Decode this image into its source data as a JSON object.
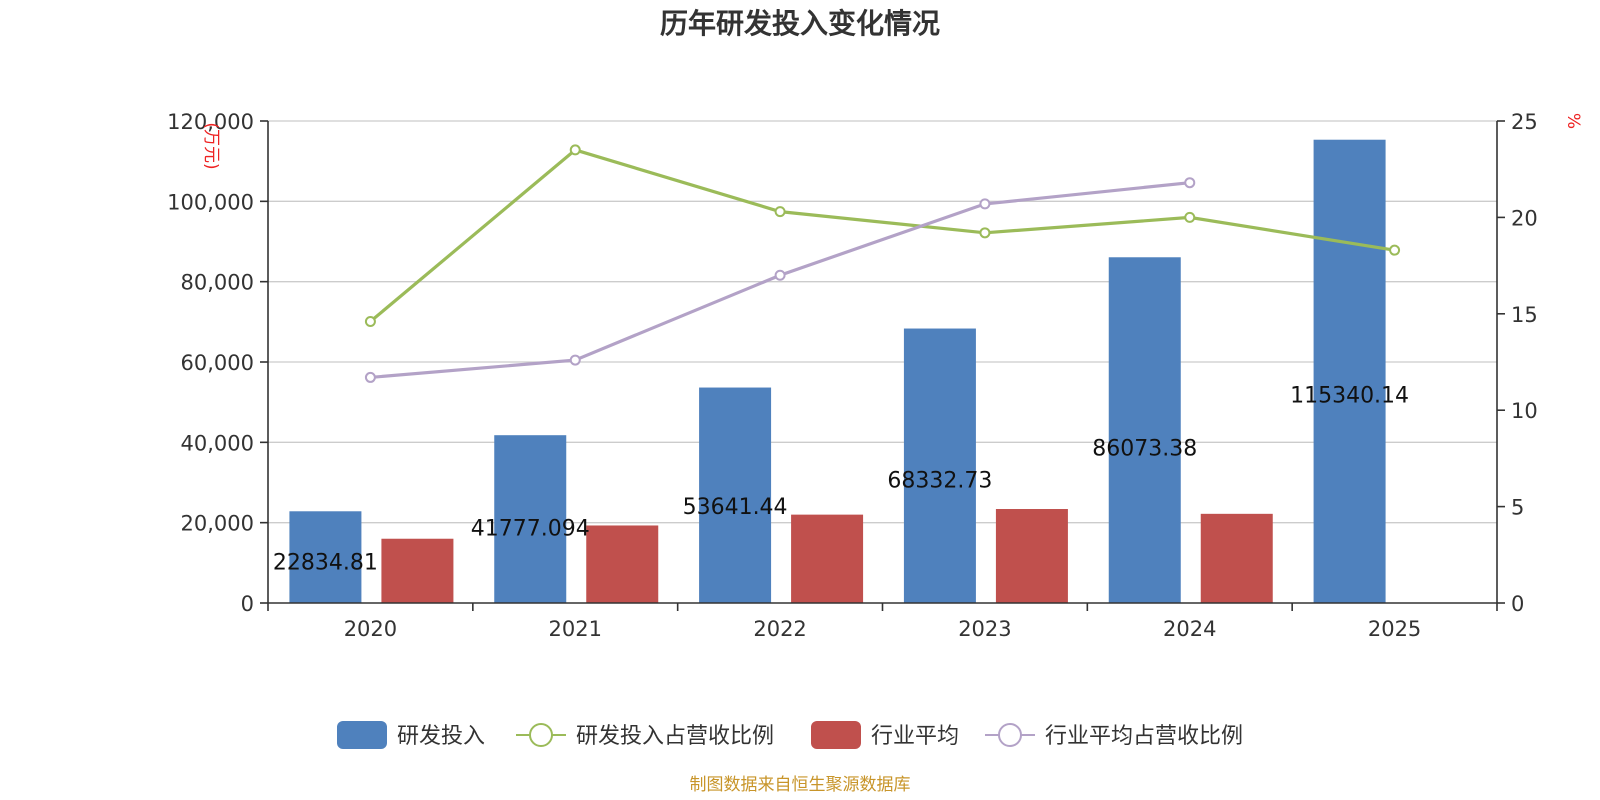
{
  "chart_data": {
    "type": "bar",
    "title": "历年研发投入变化情况",
    "categories": [
      "2020",
      "2021",
      "2022",
      "2023",
      "2024",
      "2025"
    ],
    "y_left": {
      "label": "(万元)",
      "ylim": [
        0,
        120000
      ],
      "ticks": [
        "0",
        "20,000",
        "40,000",
        "60,000",
        "80,000",
        "100,000",
        "120,000"
      ]
    },
    "y_right": {
      "label": "%",
      "ylim": [
        0,
        25
      ],
      "ticks": [
        "0",
        "5",
        "10",
        "15",
        "20",
        "25"
      ]
    },
    "series": [
      {
        "name": "研发投入",
        "kind": "bar",
        "axis": "left",
        "color": "#4f81bd",
        "values": [
          22834.81,
          41777.094,
          53641.44,
          68332.73,
          86073.38,
          115340.14
        ],
        "labels": [
          "22834.81",
          "41777.094",
          "53641.44",
          "68332.73",
          "86073.38",
          "115340.14"
        ]
      },
      {
        "name": "研发投入占营收比例",
        "kind": "line",
        "axis": "right",
        "color": "#9bbb59",
        "values": [
          14.6,
          23.5,
          20.3,
          19.2,
          20.0,
          18.3
        ]
      },
      {
        "name": "行业平均",
        "kind": "bar",
        "axis": "left",
        "color": "#c0504d",
        "values": [
          16000,
          19300,
          22000,
          23400,
          22200,
          null
        ]
      },
      {
        "name": "行业平均占营收比例",
        "kind": "line",
        "axis": "right",
        "color": "#b3a2c7",
        "values": [
          11.7,
          12.6,
          17.0,
          20.7,
          21.8,
          null
        ]
      }
    ],
    "grid": true,
    "legend_position": "bottom"
  },
  "source": "制图数据来自恒生聚源数据库"
}
